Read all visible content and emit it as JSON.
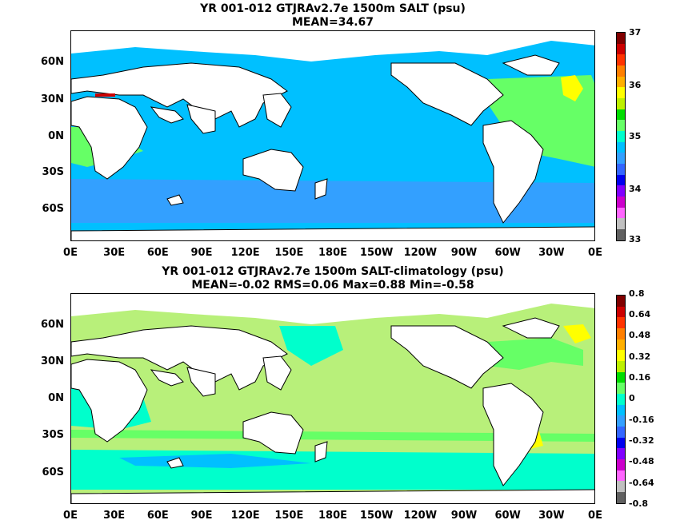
{
  "panels": [
    {
      "title_line1": "YR 001-012 GTJRAv2.7e 1500m SALT (psu)",
      "title_line2": "MEAN=34.67",
      "colorbar": {
        "labels": [
          "37",
          "36",
          "35",
          "34",
          "33"
        ],
        "colors": [
          "#800000",
          "#cc0000",
          "#ff3300",
          "#ff7f00",
          "#ffb000",
          "#ffff00",
          "#bdf000",
          "#00dd00",
          "#66ff66",
          "#00ffcc",
          "#00c0ff",
          "#33a0ff",
          "#3366ff",
          "#0000ee",
          "#8000ff",
          "#cc00cc",
          "#ff66ff",
          "#c0c0c0",
          "#606060"
        ]
      }
    },
    {
      "title_line1": "YR 001-012 GTJRAv2.7e 1500m SALT-climatology (psu)",
      "title_line2": "MEAN=-0.02   RMS=0.06   Max=0.88   Min=-0.58",
      "colorbar": {
        "labels": [
          "0.8",
          "0.64",
          "0.48",
          "0.32",
          "0.16",
          "0",
          "-0.16",
          "-0.32",
          "-0.48",
          "-0.64",
          "-0.8"
        ],
        "colors": [
          "#800000",
          "#cc0000",
          "#ff3300",
          "#ff7f00",
          "#ffb000",
          "#ffff00",
          "#bdf000",
          "#00dd00",
          "#66ff66",
          "#00ffcc",
          "#00c0ff",
          "#33a0ff",
          "#3366ff",
          "#0000ee",
          "#8000ff",
          "#cc00cc",
          "#ff66ff",
          "#c0c0c0",
          "#606060"
        ]
      }
    }
  ],
  "axes": {
    "y_labels": [
      "60N",
      "30N",
      "0N",
      "30S",
      "60S"
    ],
    "x_labels": [
      "0E",
      "30E",
      "60E",
      "90E",
      "120E",
      "150E",
      "180E",
      "150W",
      "120W",
      "90W",
      "60W",
      "30W",
      "0E"
    ]
  },
  "colors": {
    "land": "#ffffff",
    "coast": "#000000",
    "ocean_salt_main": "#00c0ff",
    "ocean_salt_high": "#66ff66",
    "ocean_salt_low": "#33a0ff",
    "ocean_diff_main": "#b8f07a",
    "ocean_diff_zero": "#00ffcc",
    "ocean_diff_pos": "#66ff66",
    "ocean_diff_neg": "#00c0ff"
  }
}
